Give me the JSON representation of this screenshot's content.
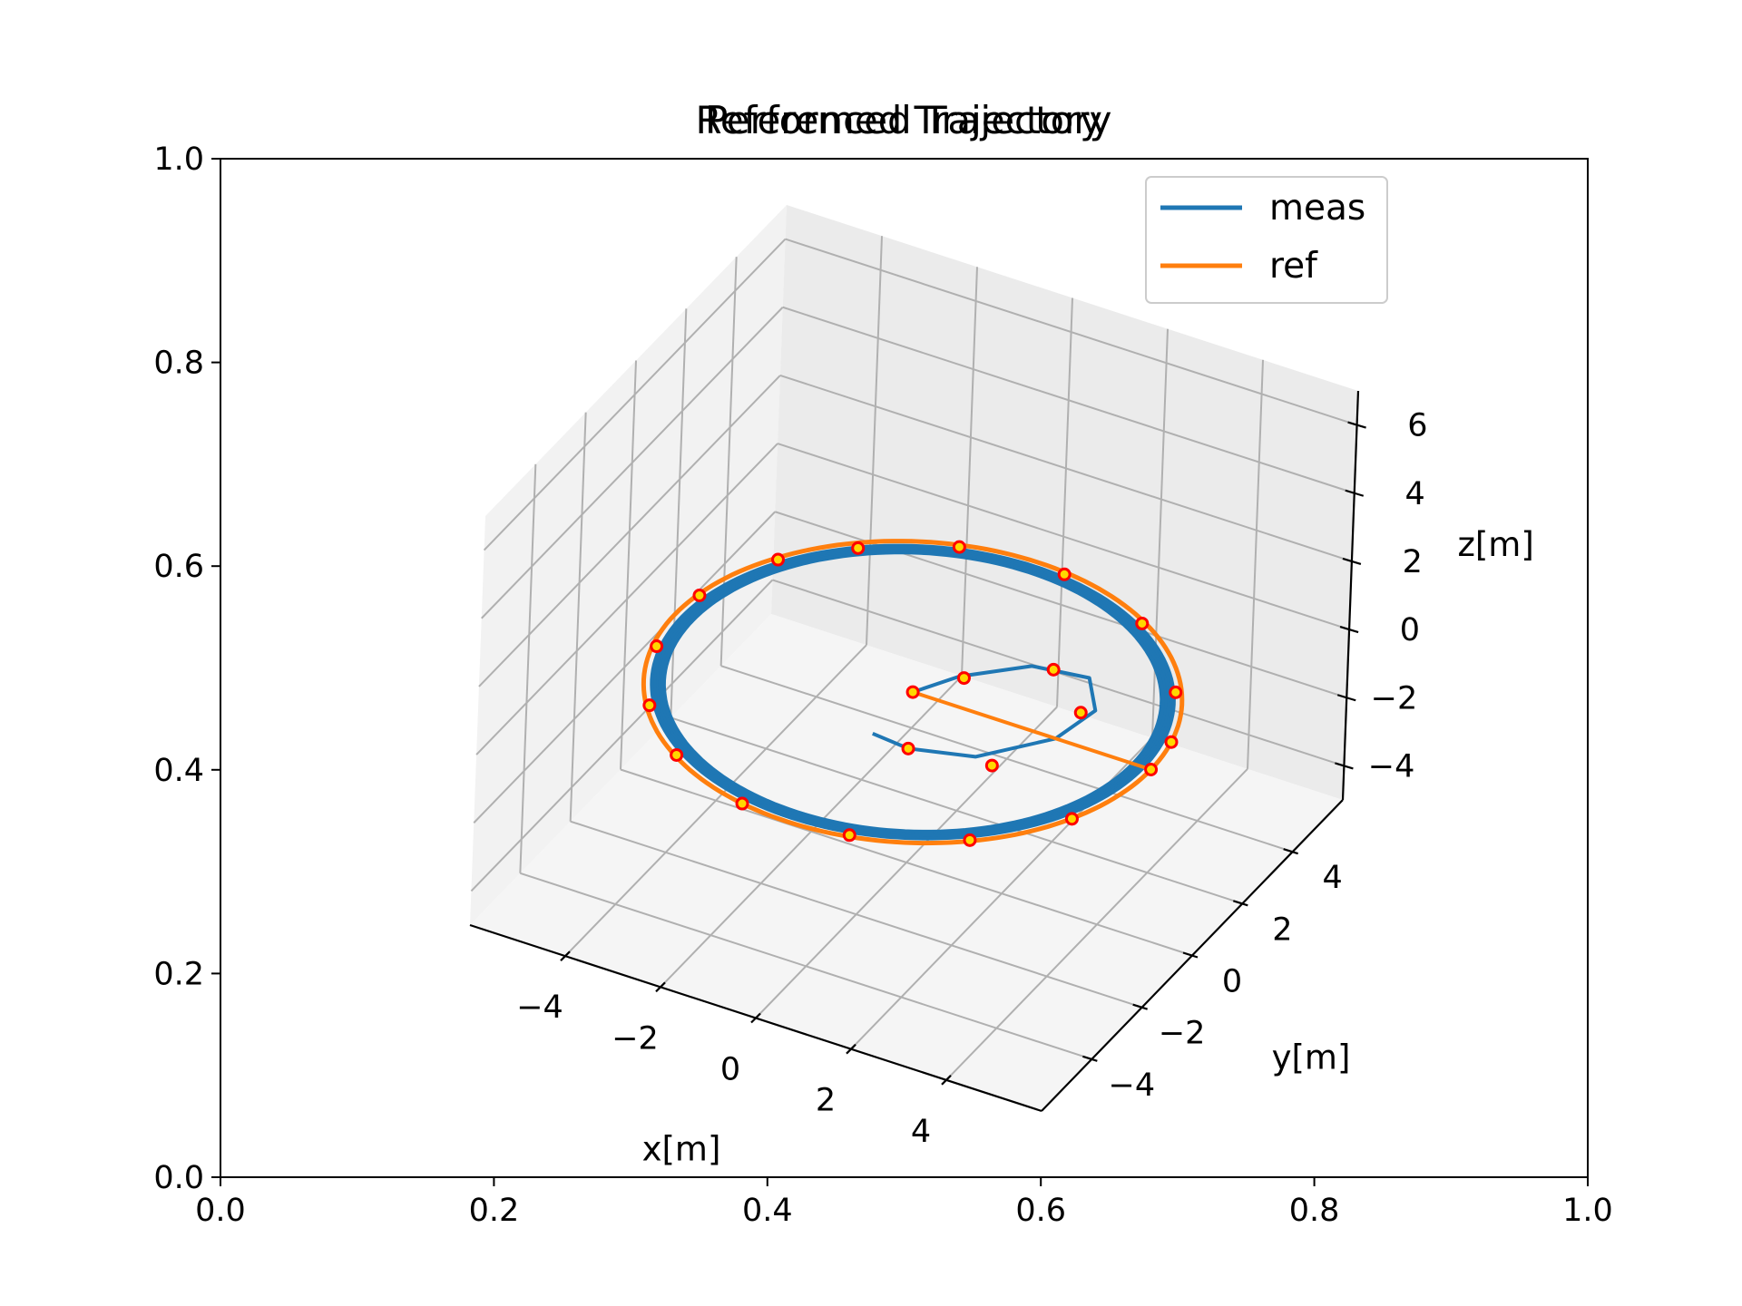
{
  "chart_data": {
    "type": "line",
    "projection": "3d",
    "titles": [
      "Referenced Trajectory",
      "Performed Trajectory"
    ],
    "outer_axes": {
      "xlim": [
        0.0,
        1.0
      ],
      "ylim": [
        0.0,
        1.0
      ],
      "xticks": [
        "0.0",
        "0.2",
        "0.4",
        "0.6",
        "0.8",
        "1.0"
      ],
      "yticks": [
        "0.0",
        "0.2",
        "0.4",
        "0.6",
        "0.8",
        "1.0"
      ]
    },
    "xlabel": "x[m]",
    "ylabel": "y[m]",
    "zlabel": "z[m]",
    "xlim": [
      -6,
      6
    ],
    "ylim": [
      -6,
      6
    ],
    "zlim": [
      -5,
      7
    ],
    "xticks": [
      "−4",
      "−2",
      "0",
      "2",
      "4"
    ],
    "yticks": [
      "−4",
      "−2",
      "0",
      "2",
      "4"
    ],
    "zticks": [
      "−4",
      "−2",
      "0",
      "2",
      "4",
      "6"
    ],
    "grid": true,
    "legend_position": "top-right",
    "series": [
      {
        "name": "meas",
        "color": "#1f77b4",
        "spiral_in": {
          "x": [
            0.0,
            0.5,
            1.5,
            2.6,
            3.2,
            3.0,
            2.0,
            0.8,
            0.0
          ],
          "y": [
            0.0,
            0.9,
            1.9,
            2.1,
            1.2,
            0.0,
            -1.3,
            -1.7,
            -1.6
          ],
          "z": [
            0.0,
            0.0,
            0.0,
            0.0,
            0.0,
            0.0,
            0.0,
            0.0,
            0.0
          ]
        },
        "orbit": {
          "radius_min": 4.62,
          "radius_max": 4.85,
          "z": 0.0
        }
      },
      {
        "name": "ref",
        "color": "#ff7f0e",
        "x": [
          0.0,
          5.0
        ],
        "y": [
          0.0,
          0.0
        ],
        "z": [
          0.0,
          0.0
        ],
        "orbit": {
          "radius": 5.0,
          "z": 0.0
        }
      }
    ],
    "markers": {
      "edge_color": "#ff0000",
      "face_color": "#ffd700",
      "points": [
        {
          "x": 0.0,
          "y": 0.0,
          "z": 0.0
        },
        {
          "x": 0.6,
          "y": 0.9,
          "z": 0.0
        },
        {
          "x": 1.9,
          "y": 2.0,
          "z": 0.0
        },
        {
          "x": 3.0,
          "y": 1.0,
          "z": 0.0
        },
        {
          "x": 2.4,
          "y": -1.4,
          "z": 0.0
        },
        {
          "x": 0.8,
          "y": -1.7,
          "z": 0.0
        },
        {
          "x": 5.0,
          "y": 0.0,
          "z": 0.0
        },
        {
          "x": 4.9,
          "y": 1.0,
          "z": 0.0
        },
        {
          "x": 4.2,
          "y": 2.5,
          "z": 0.0
        },
        {
          "x": 2.6,
          "y": 4.2,
          "z": 0.0
        },
        {
          "x": 0.6,
          "y": 4.9,
          "z": 0.0
        },
        {
          "x": -1.5,
          "y": 4.7,
          "z": 0.0
        },
        {
          "x": -3.1,
          "y": 3.7,
          "z": 0.0
        },
        {
          "x": -4.2,
          "y": 2.6,
          "z": 0.0
        },
        {
          "x": -4.9,
          "y": 0.8,
          "z": 0.0
        },
        {
          "x": -4.8,
          "y": -1.1,
          "z": 0.0
        },
        {
          "x": -4.0,
          "y": -2.9,
          "z": 0.0
        },
        {
          "x": -2.8,
          "y": -4.1,
          "z": 0.0
        },
        {
          "x": -1.0,
          "y": -4.9,
          "z": 0.0
        },
        {
          "x": 1.2,
          "y": -4.8,
          "z": 0.0
        },
        {
          "x": 3.2,
          "y": -3.8,
          "z": 0.0
        },
        {
          "x": 4.5,
          "y": -2.2,
          "z": 0.0
        }
      ]
    }
  }
}
